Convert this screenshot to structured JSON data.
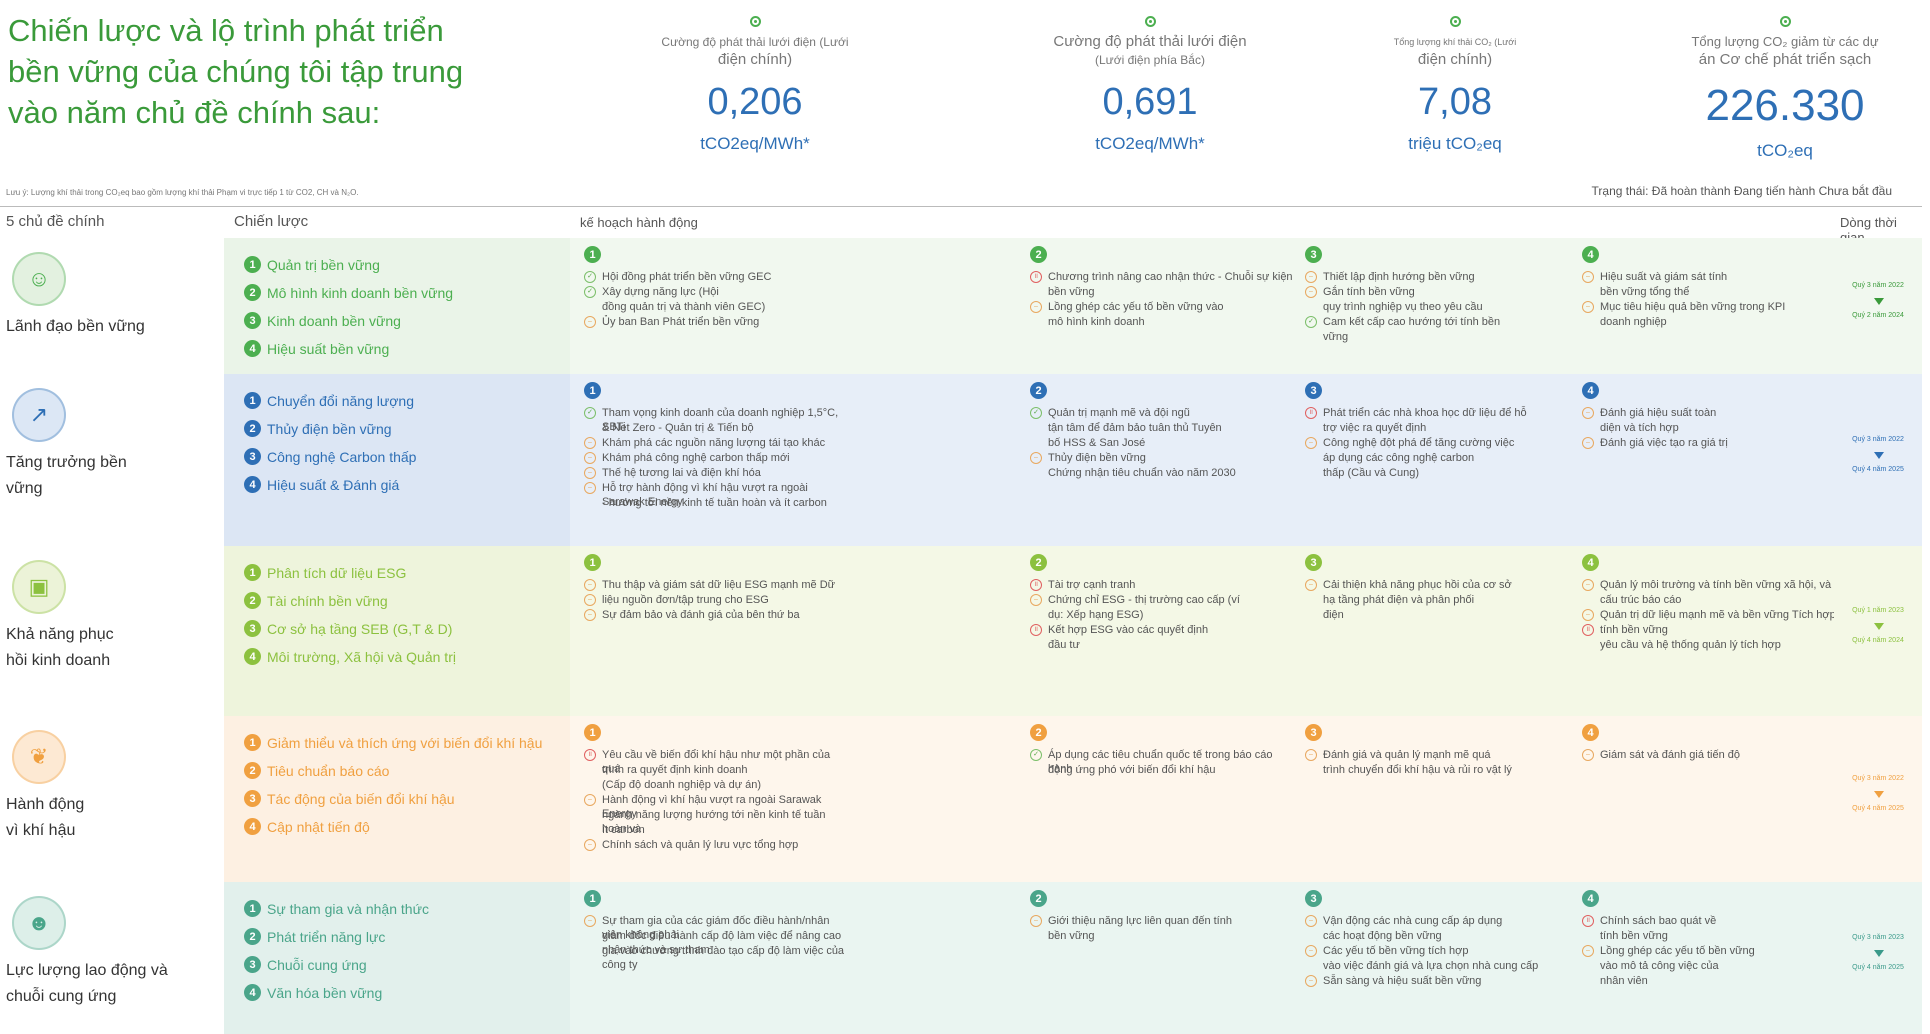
{
  "headline": [
    "Chiến lược và lộ trình phát triển",
    "bền vững của chúng tôi tập trung",
    "vào năm chủ đề chính sau:"
  ],
  "stats": [
    {
      "label1": "Cường độ phát thải lưới điện (Lưới",
      "label2": "điện chính)",
      "value": "0,206",
      "unit": "tCO2eq/MWh*"
    },
    {
      "label1": "Cường độ phát thải lưới điện",
      "label2": "(Lưới điện phía Bắc)",
      "value": "0,691",
      "unit": "tCO2eq/MWh*"
    },
    {
      "label1": "Tổng lượng khí thải CO₂ (Lưới",
      "label2": "điện chính)",
      "value": "7,08",
      "unit": "triệu tCO₂eq"
    },
    {
      "label1": "Tổng lượng CO₂ giảm từ các dự",
      "label2": "án Cơ chế phát triển sạch",
      "value": "226.330",
      "unit": "tCO₂eq"
    }
  ],
  "note": "Lưu ý: Lượng khí thải trong CO₂eq bao gồm lượng khí thải Phạm vi trực tiếp 1 từ CO2, CH và N₂O.",
  "status": "Trạng thái: Đã hoàn thành Đang tiến hành Chưa bắt đầu",
  "headers": {
    "themes": "5 chủ đề chính",
    "strategy": "Chiến lược",
    "actions": "kế hoạch hành động",
    "timeline": "Dòng thời gian"
  },
  "colors": {
    "green": "#4caf50",
    "blue": "#2e6fb5",
    "yellow": "#9cc840",
    "orange": "#f0a040",
    "teal": "#4aa58a"
  },
  "rows": [
    {
      "theme": [
        "Lãnh đạo bền vững"
      ],
      "icon": "person-icon",
      "strategies": [
        "Quản trị bền vững",
        "Mô hình kinh doanh bền vững",
        "Kinh doanh bền vững",
        "Hiệu suất bền vững"
      ],
      "cols": [
        [
          [
            "done",
            "Hội đồng phát triển bền vững GEC"
          ],
          [
            "done",
            "Xây dựng năng lực (Hội"
          ],
          [
            "",
            "đồng quản trị và thành viên GEC)"
          ],
          [
            "prog",
            "Ủy ban Ban Phát triển bền vững"
          ]
        ],
        [
          [
            "not",
            "Chương trình nâng cao nhận thức - Chuỗi sự kiện"
          ],
          [
            "",
            "bền vững"
          ],
          [
            "prog",
            "Lồng ghép các yếu tố bền vững vào"
          ],
          [
            "",
            "mô hình kinh doanh"
          ]
        ],
        [
          [
            "prog",
            "Thiết lập định hướng bền vững"
          ],
          [
            "prog",
            "Gắn tính bền vững"
          ],
          [
            "",
            "quy trình nghiệp vụ theo yêu cầu"
          ],
          [
            "done",
            "Cam kết cấp cao hướng tới tính bền"
          ],
          [
            "",
            "vững"
          ]
        ],
        [
          [
            "prog",
            "Hiệu suất và giám sát tính"
          ],
          [
            "",
            "bền vững tổng thể"
          ],
          [
            "prog",
            "Mục tiêu hiệu quả bền vững trong KPI"
          ],
          [
            "",
            "doanh nghiệp"
          ]
        ]
      ],
      "tl": [
        "Quý 3 năm 2022",
        "Quý 2 năm 2024"
      ]
    },
    {
      "theme": [
        "Tăng trưởng bền",
        "vững"
      ],
      "icon": "growth-chart-icon",
      "strategies": [
        "Chuyển đổi năng lượng",
        "Thủy điện bền vững",
        "Công nghệ Carbon thấp",
        "Hiệu suất & Đánh giá"
      ],
      "cols": [
        [
          [
            "done",
            "Tham vọng kinh doanh của doanh nghiệp 1,5°C, SBTi"
          ],
          [
            "",
            "& Net Zero - Quản trị & Tiến bộ"
          ],
          [
            "prog",
            "Khám phá các nguồn năng lượng tái tạo khác"
          ],
          [
            "prog",
            "Khám phá công nghệ carbon thấp mới"
          ],
          [
            "prog",
            "Thế hệ tương lai và điện khí hóa"
          ],
          [
            "prog",
            "Hỗ trợ hành động vì khí hậu vượt ra ngoài Sarawak Energy"
          ],
          [
            "",
            "- hướng tới nền kinh tế tuần hoàn và ít carbon"
          ]
        ],
        [
          [
            "done",
            "Quản trị mạnh mẽ và đội ngũ"
          ],
          [
            "",
            "tận tâm để đảm bảo tuân thủ Tuyên"
          ],
          [
            "",
            "bố HSS & San José"
          ],
          [
            "prog",
            "Thủy điện bền vững"
          ],
          [
            "",
            "Chứng nhận tiêu chuẩn vào năm 2030"
          ]
        ],
        [
          [
            "not",
            "Phát triển các nhà khoa học dữ liệu để hỗ"
          ],
          [
            "",
            "trợ việc ra quyết định"
          ],
          [
            "prog",
            "Công nghệ đột phá để tăng cường việc"
          ],
          [
            "",
            "áp dụng các công nghệ carbon"
          ],
          [
            "",
            "thấp (Cầu và Cung)"
          ]
        ],
        [
          [
            "prog",
            "Đánh giá hiệu suất toàn"
          ],
          [
            "",
            "diện và tích hợp"
          ],
          [
            "prog",
            "Đánh giá việc tạo ra giá trị"
          ]
        ]
      ],
      "tl": [
        "Quý 3 năm 2022",
        "Quý 4 năm 2025"
      ]
    },
    {
      "theme": [
        "Khả năng phục",
        "hồi kinh doanh"
      ],
      "icon": "briefcase-icon",
      "strategies": [
        "Phân tích dữ liệu ESG",
        "Tài chính bền vững",
        "Cơ sở hạ tầng SEB (G,T & D)",
        "Môi trường, Xã hội và Quản trị"
      ],
      "cols": [
        [
          [
            "prog",
            "Thu thập và giám sát dữ liệu ESG mạnh mẽ Dữ"
          ],
          [
            "prog",
            "liệu nguồn đơn/tập trung cho ESG"
          ],
          [
            "prog",
            "Sự đảm bảo và đánh giá của bên thứ ba"
          ]
        ],
        [
          [
            "not",
            "Tài trợ cạnh tranh"
          ],
          [
            "prog",
            "Chứng chỉ ESG - thị trường cao cấp (ví"
          ],
          [
            "",
            "dụ: Xếp hạng ESG)"
          ],
          [
            "not",
            "Kết hợp ESG vào các quyết định"
          ],
          [
            "",
            "đầu tư"
          ]
        ],
        [
          [
            "prog",
            "Cải thiện khả năng phục hồi của cơ sở"
          ],
          [
            "",
            "hạ tầng phát điện và phân phối"
          ],
          [
            "",
            "điện"
          ]
        ],
        [
          [
            "prog",
            "Quản lý môi trường và tính bền vững xã hội, và"
          ],
          [
            "",
            "cấu trúc báo cáo"
          ],
          [
            "prog",
            "Quản trị dữ liệu mạnh mẽ và bền vững Tích hợp"
          ],
          [
            "not",
            "tính bền vững"
          ],
          [
            "",
            "yêu cầu và hệ thống quản lý tích hợp"
          ]
        ]
      ],
      "tl": [
        "Quý 1 năm 2023",
        "Quý 4 năm 2024"
      ]
    },
    {
      "theme": [
        "Hành động",
        "vì khí hậu"
      ],
      "icon": "leaf-icon",
      "strategies": [
        "Giảm thiểu và thích ứng với biến đổi khí hậu",
        "Tiêu chuẩn báo cáo",
        "Tác động của biến đổi khí hậu",
        "Cập nhật tiến độ"
      ],
      "cols": [
        [
          [
            "not",
            "Yêu cầu về biến đổi khí hậu như một phần của quá"
          ],
          [
            "",
            "trình ra quyết định kinh doanh"
          ],
          [
            "",
            "(Cấp độ doanh nghiệp và dự án)"
          ],
          [
            "prog",
            "Hành động vì khí hậu vượt ra ngoài Sarawak Energy"
          ],
          [
            "",
            "ngành năng lượng hướng tới nền kinh tế tuần hoàn và"
          ],
          [
            "",
            "ít carbon"
          ],
          [
            "prog",
            "Chính sách và quản lý lưu vực tổng hợp"
          ]
        ],
        [
          [
            "done",
            "Áp dụng các tiêu chuẩn quốc tế trong báo cáo hành"
          ],
          [
            "",
            "động ứng phó với biến đổi khí hậu"
          ]
        ],
        [
          [
            "prog",
            "Đánh giá và quản lý mạnh mẽ quá"
          ],
          [
            "",
            "trình chuyển đổi khí hậu và rủi ro vật lý"
          ]
        ],
        [
          [
            "prog",
            "Giám sát và đánh giá tiến độ"
          ]
        ]
      ],
      "tl": [
        "Quý 3 năm 2022",
        "Quý 4 năm 2025"
      ]
    },
    {
      "theme": [
        "Lực lượng lao động và",
        "chuỗi cung ứng"
      ],
      "icon": "people-icon",
      "strategies": [
        "Sự tham gia và nhận thức",
        "Phát triển năng lực",
        "Chuỗi cung ứng",
        "Văn hóa bền vững"
      ],
      "cols": [
        [
          [
            "prog",
            "Sự tham gia của các giám đốc điều hành/nhân viên không phải"
          ],
          [
            "",
            "giám đốc điều hành cấp độ làm việc để nâng cao nhận thức và sự tham"
          ],
          [
            "",
            "gia vào chương trình đào tạo cấp độ làm việc của công ty"
          ]
        ],
        [
          [
            "prog",
            "Giới thiệu năng lực liên quan đến tính"
          ],
          [
            "",
            "bền vững"
          ]
        ],
        [
          [
            "prog",
            "Vận động các nhà cung cấp áp dụng"
          ],
          [
            "",
            "các hoạt động bền vững"
          ],
          [
            "prog",
            "Các yếu tố bền vững tích hợp"
          ],
          [
            "",
            "vào việc đánh giá và lựa chọn nhà cung cấp"
          ],
          [
            "prog",
            "Sẵn sàng và hiệu suất bền vững"
          ]
        ],
        [
          [
            "not",
            "Chính sách bao quát về"
          ],
          [
            "",
            "tính bền vững"
          ],
          [
            "prog",
            "Lồng ghép các yếu tố bền vững"
          ],
          [
            "",
            "vào mô tả công việc của"
          ],
          [
            "",
            "nhân viên"
          ]
        ]
      ],
      "tl": [
        "Quý 3 năm 2023",
        "Quý 4 năm 2025"
      ]
    }
  ]
}
